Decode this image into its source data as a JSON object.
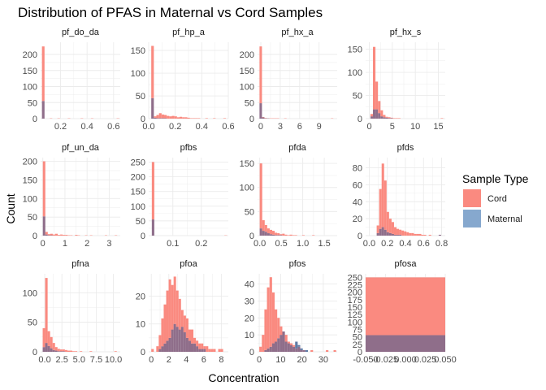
{
  "chart_data": {
    "type": "histogram-facets",
    "title": "Distribution of PFAS in Maternal vs Cord Samples",
    "xlabel": "Concentration",
    "ylabel": "Count",
    "legend": {
      "title": "Sample Type",
      "placement": "right",
      "items": [
        {
          "name": "Cord",
          "color": "#F8766D"
        },
        {
          "name": "Maternal",
          "color": "#4E84C4"
        }
      ]
    },
    "colors": {
      "Cord": "#FA8A80",
      "Maternal": "#5E7BA6",
      "overlap": "#8F6E8A",
      "grid": "#EBEBEB"
    },
    "grid": true,
    "facets": [
      {
        "name": "pf_do_da",
        "xlim": [
          0.05,
          0.65
        ],
        "ylim": [
          0,
          238
        ],
        "xticks": [
          0.2,
          0.4,
          0.6
        ],
        "xtick_labels": [
          "0.2",
          "0.4",
          "0.6"
        ],
        "yticks": [
          0,
          50,
          100,
          150,
          200
        ],
        "ytick_labels": [
          "0",
          "50",
          "100",
          "150",
          "200"
        ],
        "bin_start": 0.06,
        "bin_width": 0.0194,
        "cord": [
          225,
          0,
          0,
          1,
          0,
          0,
          1,
          0,
          0,
          0,
          1,
          0,
          0,
          0,
          0,
          1,
          0,
          0,
          0,
          1,
          0,
          0,
          0,
          0,
          0,
          0,
          0,
          0,
          0,
          1
        ],
        "maternal": [
          55,
          0,
          0,
          0,
          0,
          0,
          0,
          0,
          0,
          0,
          0,
          0,
          0,
          0,
          0,
          0,
          0,
          0,
          0,
          0,
          0,
          0,
          0,
          0,
          0,
          0,
          0,
          0,
          0,
          0
        ]
      },
      {
        "name": "pf_hp_a",
        "xlim": [
          0,
          0.6
        ],
        "ylim": [
          0,
          168
        ],
        "xticks": [
          0,
          0.2,
          0.4,
          0.6
        ],
        "xtick_labels": [
          "0.0",
          "0.2",
          "0.4",
          "0.6"
        ],
        "yticks": [
          0,
          50,
          100,
          150
        ],
        "ytick_labels": [
          "0",
          "50",
          "100",
          "150"
        ],
        "bin_start": 0.0,
        "bin_width": 0.0194,
        "cord": [
          0,
          160,
          5,
          8,
          12,
          9,
          8,
          6,
          5,
          6,
          5,
          3,
          4,
          3,
          3,
          2,
          1,
          1,
          1,
          1,
          0,
          0,
          1,
          0,
          0,
          1,
          0,
          0,
          0,
          1
        ],
        "maternal": [
          0,
          45,
          2,
          1,
          1,
          1,
          1,
          0,
          0,
          0,
          0,
          0,
          0,
          0,
          0,
          0,
          0,
          0,
          0,
          0,
          0,
          0,
          0,
          0,
          0,
          0,
          0,
          0,
          0,
          0
        ]
      },
      {
        "name": "pf_hx_a",
        "xlim": [
          -0.5,
          11.8
        ],
        "ylim": [
          0,
          238
        ],
        "xticks": [
          0,
          3,
          6,
          9
        ],
        "xtick_labels": [
          "0",
          "3",
          "6",
          "9"
        ],
        "yticks": [
          0,
          50,
          100,
          150,
          200
        ],
        "ytick_labels": [
          "0",
          "50",
          "100",
          "150",
          "200"
        ],
        "bin_start": -0.2,
        "bin_width": 0.38,
        "cord": [
          225,
          5,
          2,
          1,
          1,
          1,
          1,
          1,
          0,
          0,
          1,
          0,
          0,
          0,
          0,
          0,
          0,
          0,
          0,
          0,
          0,
          0,
          0,
          0,
          0,
          0,
          0,
          0,
          0,
          1
        ],
        "maternal": [
          48,
          4,
          1,
          1,
          0,
          0,
          0,
          0,
          0,
          0,
          0,
          0,
          0,
          0,
          0,
          0,
          0,
          0,
          0,
          0,
          0,
          0,
          0,
          0,
          0,
          0,
          0,
          0,
          0,
          0
        ]
      },
      {
        "name": "pf_hx_s",
        "xlim": [
          -0.8,
          16.5
        ],
        "ylim": [
          0,
          165
        ],
        "xticks": [
          0,
          5,
          10,
          15
        ],
        "xtick_labels": [
          "0",
          "5",
          "10",
          "15"
        ],
        "yticks": [
          0,
          50,
          100,
          150
        ],
        "ytick_labels": [
          "0",
          "50",
          "100",
          "150"
        ],
        "bin_start": -0.3,
        "bin_width": 0.545,
        "cord": [
          0,
          10,
          155,
          80,
          38,
          18,
          8,
          4,
          3,
          2,
          1,
          1,
          1,
          0,
          0,
          0,
          0,
          0,
          0,
          0,
          0,
          0,
          0,
          0,
          0,
          0,
          0,
          0,
          0,
          1
        ],
        "maternal": [
          0,
          5,
          20,
          20,
          12,
          5,
          3,
          2,
          1,
          1,
          0,
          0,
          0,
          0,
          0,
          0,
          0,
          0,
          0,
          0,
          0,
          0,
          0,
          0,
          0,
          0,
          0,
          0,
          0,
          0
        ]
      },
      {
        "name": "pf_un_da",
        "xlim": [
          -0.1,
          3.5
        ],
        "ylim": [
          0,
          210
        ],
        "xticks": [
          0,
          1,
          2,
          3
        ],
        "xtick_labels": [
          "0",
          "1",
          "2",
          "3"
        ],
        "yticks": [
          0,
          50,
          100,
          150,
          200
        ],
        "ytick_labels": [
          "0",
          "50",
          "100",
          "150",
          "200"
        ],
        "bin_start": 0.0,
        "bin_width": 0.112,
        "cord": [
          200,
          10,
          4,
          5,
          3,
          5,
          2,
          3,
          2,
          2,
          1,
          1,
          0,
          2,
          1,
          0,
          0,
          1,
          0,
          1,
          0,
          0,
          0,
          0,
          0,
          1,
          0,
          0,
          0,
          1
        ],
        "maternal": [
          52,
          3,
          1,
          1,
          0,
          0,
          0,
          0,
          0,
          0,
          0,
          0,
          0,
          0,
          0,
          0,
          0,
          0,
          0,
          0,
          0,
          0,
          0,
          0,
          0,
          0,
          0,
          0,
          0,
          0
        ]
      },
      {
        "name": "pfbs",
        "xlim": [
          0.015,
          0.295
        ],
        "ylim": [
          0,
          265
        ],
        "xticks": [
          0.1,
          0.2
        ],
        "xtick_labels": [
          "0.1",
          "0.2"
        ],
        "yticks": [
          0,
          50,
          100,
          150,
          200,
          250
        ],
        "ytick_labels": [
          "0",
          "50",
          "100",
          "150",
          "200",
          "250"
        ],
        "bin_start": 0.026,
        "bin_width": 0.0088,
        "cord": [
          250,
          0,
          0,
          0,
          0,
          0,
          0,
          0,
          0,
          0,
          0,
          0,
          0,
          0,
          0,
          0,
          0,
          0,
          0,
          0,
          0,
          0,
          0,
          0,
          0,
          0,
          0,
          0,
          0,
          1
        ],
        "maternal": [
          55,
          0,
          0,
          0,
          0,
          0,
          0,
          0,
          0,
          0,
          0,
          0,
          0,
          0,
          0,
          0,
          0,
          0,
          0,
          0,
          0,
          0,
          0,
          0,
          0,
          0,
          0,
          0,
          0,
          0
        ]
      },
      {
        "name": "pfda",
        "xlim": [
          -0.05,
          1.8
        ],
        "ylim": [
          0,
          162
        ],
        "xticks": [
          0,
          0.5,
          1.0,
          1.5
        ],
        "xtick_labels": [
          "0.0",
          "0.5",
          "1.0",
          "1.5"
        ],
        "yticks": [
          0,
          50,
          100,
          150
        ],
        "ytick_labels": [
          "0",
          "50",
          "100",
          "150"
        ],
        "bin_start": 0.0,
        "bin_width": 0.058,
        "cord": [
          150,
          32,
          22,
          15,
          12,
          10,
          6,
          5,
          3,
          4,
          2,
          1,
          2,
          1,
          1,
          0,
          0,
          1,
          0,
          0,
          0,
          1,
          0,
          0,
          0,
          0,
          0,
          0,
          0,
          0
        ],
        "maternal": [
          15,
          10,
          8,
          5,
          3,
          2,
          1,
          1,
          1,
          0,
          0,
          0,
          0,
          0,
          0,
          0,
          0,
          0,
          0,
          0,
          0,
          0,
          0,
          0,
          0,
          0,
          0,
          0,
          0,
          0
        ]
      },
      {
        "name": "pfds",
        "xlim": [
          -0.04,
          0.84
        ],
        "ylim": [
          0,
          92
        ],
        "xticks": [
          0,
          0.2,
          0.4,
          0.6,
          0.8
        ],
        "xtick_labels": [
          "0.0",
          "0.2",
          "0.4",
          "0.6",
          "0.8"
        ],
        "yticks": [
          0,
          20,
          40,
          60,
          80
        ],
        "ytick_labels": [
          "0",
          "20",
          "40",
          "60",
          "80"
        ],
        "bin_start": 0.0,
        "bin_width": 0.0274,
        "cord": [
          0,
          0,
          0,
          12,
          55,
          85,
          65,
          28,
          20,
          16,
          10,
          8,
          7,
          6,
          5,
          4,
          3,
          3,
          2,
          2,
          2,
          1,
          1,
          0,
          1,
          0,
          0,
          0,
          1,
          0
        ],
        "maternal": [
          0,
          0,
          0,
          3,
          8,
          10,
          7,
          4,
          3,
          2,
          1,
          1,
          1,
          0,
          0,
          0,
          0,
          0,
          0,
          0,
          0,
          0,
          0,
          0,
          0,
          0,
          0,
          0,
          1,
          0
        ]
      },
      {
        "name": "pfna",
        "xlim": [
          -0.6,
          11.0
        ],
        "ylim": [
          0,
          132
        ],
        "xticks": [
          0,
          2.5,
          5.0,
          7.5,
          10.0
        ],
        "xtick_labels": [
          "0.0",
          "2.5",
          "5.0",
          "7.5",
          "10.0"
        ],
        "yticks": [
          0,
          50,
          100
        ],
        "ytick_labels": [
          "0",
          "50",
          "100"
        ],
        "bin_start": -0.3,
        "bin_width": 0.36,
        "cord": [
          40,
          125,
          35,
          25,
          15,
          8,
          5,
          4,
          4,
          3,
          2,
          2,
          1,
          1,
          0,
          1,
          0,
          0,
          0,
          1,
          0,
          0,
          0,
          0,
          0,
          0,
          0,
          0,
          0,
          1
        ],
        "maternal": [
          8,
          15,
          10,
          6,
          3,
          2,
          1,
          1,
          1,
          0,
          0,
          0,
          0,
          0,
          0,
          0,
          0,
          0,
          0,
          0,
          0,
          0,
          0,
          0,
          0,
          0,
          0,
          0,
          0,
          0
        ]
      },
      {
        "name": "pfoa",
        "xlim": [
          -0.3,
          8.8
        ],
        "ylim": [
          0,
          28
        ],
        "xticks": [
          0,
          2,
          4,
          6,
          8
        ],
        "xtick_labels": [
          "0",
          "2",
          "4",
          "6",
          "8"
        ],
        "yticks": [
          0,
          10,
          20
        ],
        "ytick_labels": [
          "0",
          "10",
          "20"
        ],
        "bin_start": 0.0,
        "bin_width": 0.283,
        "cord": [
          1,
          0,
          2,
          6,
          12,
          17,
          22,
          26,
          24,
          27,
          22,
          19,
          15,
          13,
          12,
          8,
          8,
          5,
          4,
          3,
          3,
          2,
          2,
          1,
          1,
          1,
          0,
          1,
          1,
          0
        ],
        "maternal": [
          0,
          0,
          0,
          1,
          2,
          3,
          4,
          5,
          8,
          10,
          9,
          8,
          9,
          7,
          5,
          4,
          3,
          3,
          2,
          1,
          1,
          1,
          0,
          0,
          0,
          0,
          0,
          0,
          0,
          0
        ]
      },
      {
        "name": "pfos",
        "xlim": [
          -0.8,
          36.5
        ],
        "ylim": [
          0,
          46
        ],
        "xticks": [
          0,
          10,
          20,
          30
        ],
        "xtick_labels": [
          "0",
          "10",
          "20",
          "30"
        ],
        "yticks": [
          0,
          10,
          20,
          30,
          40
        ],
        "ytick_labels": [
          "0",
          "10",
          "20",
          "30",
          "40"
        ],
        "bin_start": 0.0,
        "bin_width": 1.2,
        "cord": [
          3,
          10,
          25,
          38,
          44,
          35,
          25,
          20,
          15,
          12,
          10,
          6,
          5,
          4,
          2,
          3,
          1,
          1,
          0,
          0,
          1,
          0,
          0,
          0,
          0,
          0,
          1,
          0,
          0,
          1
        ],
        "maternal": [
          0,
          0,
          1,
          2,
          3,
          5,
          6,
          8,
          10,
          12,
          6,
          5,
          4,
          3,
          6,
          4,
          2,
          1,
          1,
          0,
          0,
          0,
          0,
          0,
          0,
          0,
          0,
          0,
          0,
          0
        ]
      },
      {
        "name": "pfosa",
        "xlim": [
          -0.05,
          0.05
        ],
        "ylim": [
          0,
          262
        ],
        "xticks": [
          -0.05,
          -0.025,
          0,
          0.025,
          0.05
        ],
        "xtick_labels": [
          "-0.050",
          "-0.025",
          "0.000",
          "0.025",
          "0.050"
        ],
        "yticks": [
          0,
          25,
          50,
          75,
          100,
          125,
          150,
          175,
          200,
          225,
          250
        ],
        "ytick_labels": [
          "0",
          "25",
          "50",
          "75",
          "100",
          "125",
          "150",
          "175",
          "200",
          "225",
          "250"
        ],
        "bin_start": -0.05,
        "bin_width": 0.1,
        "cord": [
          250
        ],
        "maternal": [
          56
        ]
      }
    ]
  }
}
